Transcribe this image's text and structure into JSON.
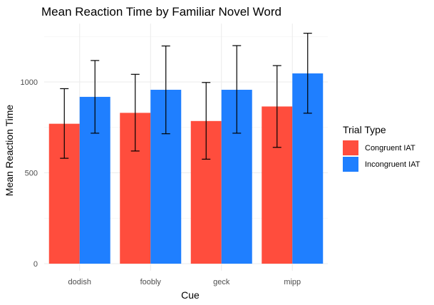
{
  "chart_data": {
    "type": "bar",
    "title": "Mean Reaction Time by Familiar Novel Word",
    "xlabel": "Cue",
    "ylabel": "Mean Reaction Time",
    "categories": [
      "dodish",
      "foobly",
      "geck",
      "mipp"
    ],
    "ylim": [
      0,
      1280
    ],
    "yticks": [
      0,
      500,
      1000
    ],
    "grid": true,
    "legend": {
      "title": "Trial Type",
      "position": "right"
    },
    "series": [
      {
        "name": "Congruent IAT",
        "color": "#ff4d3d",
        "values": [
          770,
          830,
          785,
          865
        ],
        "error_low": [
          580,
          620,
          575,
          640
        ],
        "error_high": [
          963,
          1042,
          997,
          1090
        ]
      },
      {
        "name": "Incongruent IAT",
        "color": "#1f7fff",
        "values": [
          918,
          957,
          957,
          1047
        ],
        "error_low": [
          718,
          715,
          718,
          828
        ],
        "error_high": [
          1118,
          1198,
          1200,
          1268
        ]
      }
    ]
  }
}
